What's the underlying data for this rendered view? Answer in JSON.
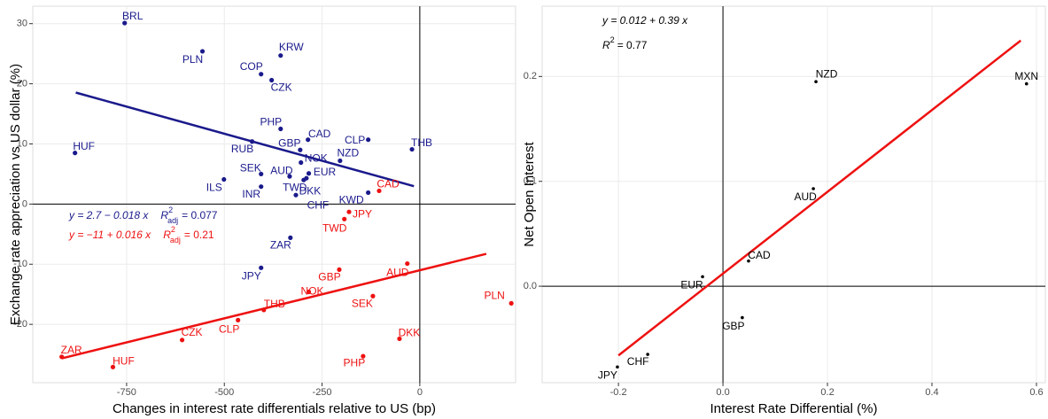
{
  "chart_data": [
    {
      "type": "scatter",
      "x_label": "Changes in interest rate differentials relative to US (bp)",
      "y_label": "Exchange rate appreciation vs US dollar (%)",
      "xlim": [
        -990,
        245
      ],
      "ylim": [
        -29.7,
        32.9
      ],
      "xticks": [
        -750,
        -500,
        -250,
        0
      ],
      "yticks": [
        -20,
        -10,
        0,
        10,
        20,
        30
      ],
      "grid": true,
      "series": [
        {
          "color": "#1a1a8c",
          "labels": [
            "BRL",
            "PLN",
            "KRW",
            "COP",
            "CZK",
            "PHP",
            "CAD",
            "CLP",
            "THB",
            "HUF",
            "RUB",
            "GBP",
            "NOK",
            "NZD",
            "SEK",
            "AUD",
            "EUR",
            "TWD",
            "ILS",
            "INR",
            "DKK",
            "KWD",
            "CHF",
            "ZAR",
            "JPY"
          ],
          "x": [
            -755,
            -556,
            -356,
            -406,
            -379,
            -356,
            -286,
            -132,
            -20,
            -882,
            -429,
            -306,
            -304,
            -204,
            -406,
            -333,
            -284,
            -297,
            -501,
            -406,
            -317,
            -132,
            -290,
            -331,
            -406
          ],
          "values": [
            30.1,
            25.4,
            24.7,
            21.6,
            20.6,
            12.5,
            10.7,
            10.7,
            9.1,
            8.5,
            10.4,
            9.0,
            6.9,
            7.2,
            5.0,
            4.6,
            5.1,
            4.0,
            4.1,
            2.9,
            1.5,
            1.9,
            4.3,
            -5.6,
            -10.6
          ],
          "trend": {
            "x": [
              -880,
              -15
            ],
            "values": [
              18.54,
              2.97
            ]
          },
          "equation": "y = 2.7 − 0.018 x",
          "r2_symbol": "R",
          "r2_sup": "2",
          "r2_sub": "adj",
          "r2_value": "= 0.077"
        },
        {
          "color": "#ee1111",
          "labels": [
            "CAD",
            "JPY",
            "TWD",
            "AUD",
            "GBP",
            "NOK",
            "SEK",
            "PLN",
            "THB",
            "CLP",
            "CZK",
            "DKK",
            "PHP",
            "ZAR",
            "HUF"
          ],
          "x": [
            -104,
            -181,
            -193,
            -32,
            -206,
            -284,
            -120,
            234,
            -399,
            -465,
            -608,
            -52,
            -145,
            -916,
            -785
          ],
          "values": [
            2.2,
            -1.3,
            -2.5,
            -9.9,
            -10.9,
            -14.6,
            -15.3,
            -16.5,
            -17.6,
            -19.3,
            -22.6,
            -22.4,
            -25.3,
            -25.4,
            -27.1
          ],
          "trend": {
            "x": [
              -916,
              170
            ],
            "values": [
              -25.66,
              -8.28
            ]
          },
          "equation": "y = −11 + 0.016 x",
          "r2_symbol": "R",
          "r2_sup": "2",
          "r2_sub": "adj",
          "r2_value": "= 0.21"
        }
      ]
    },
    {
      "type": "scatter",
      "x_label": "Interest Rate Differential (%)",
      "y_label": "Net Open Interest",
      "xlim": [
        -0.346,
        0.617
      ],
      "ylim": [
        -0.092,
        0.267
      ],
      "xticks": [
        -0.2,
        {
          "value": 0,
          "label": "0.0"
        },
        0.2,
        0.4,
        0.6
      ],
      "yticks": [
        {
          "value": 0,
          "label": "0.0"
        },
        0.1,
        0.2
      ],
      "grid": true,
      "series": [
        {
          "color": "#000000",
          "line_color": "#ee1111",
          "labels": [
            "NZD",
            "MXN",
            "AUD",
            "CAD",
            "EUR",
            "GBP",
            "CHF",
            "JPY"
          ],
          "x": [
            0.178,
            0.581,
            0.173,
            0.049,
            -0.039,
            0.037,
            -0.144,
            -0.202
          ],
          "values": [
            0.195,
            0.193,
            0.093,
            0.024,
            0.009,
            -0.03,
            -0.065,
            -0.077
          ],
          "trend": {
            "x": [
              -0.2,
              0.57
            ],
            "values": [
              -0.066,
              0.2343
            ]
          },
          "equation": "y = 0.012 + 0.39 x",
          "r2_symbol": "R",
          "r2_sup": "2",
          "r2_value": "= 0.77"
        }
      ]
    }
  ]
}
